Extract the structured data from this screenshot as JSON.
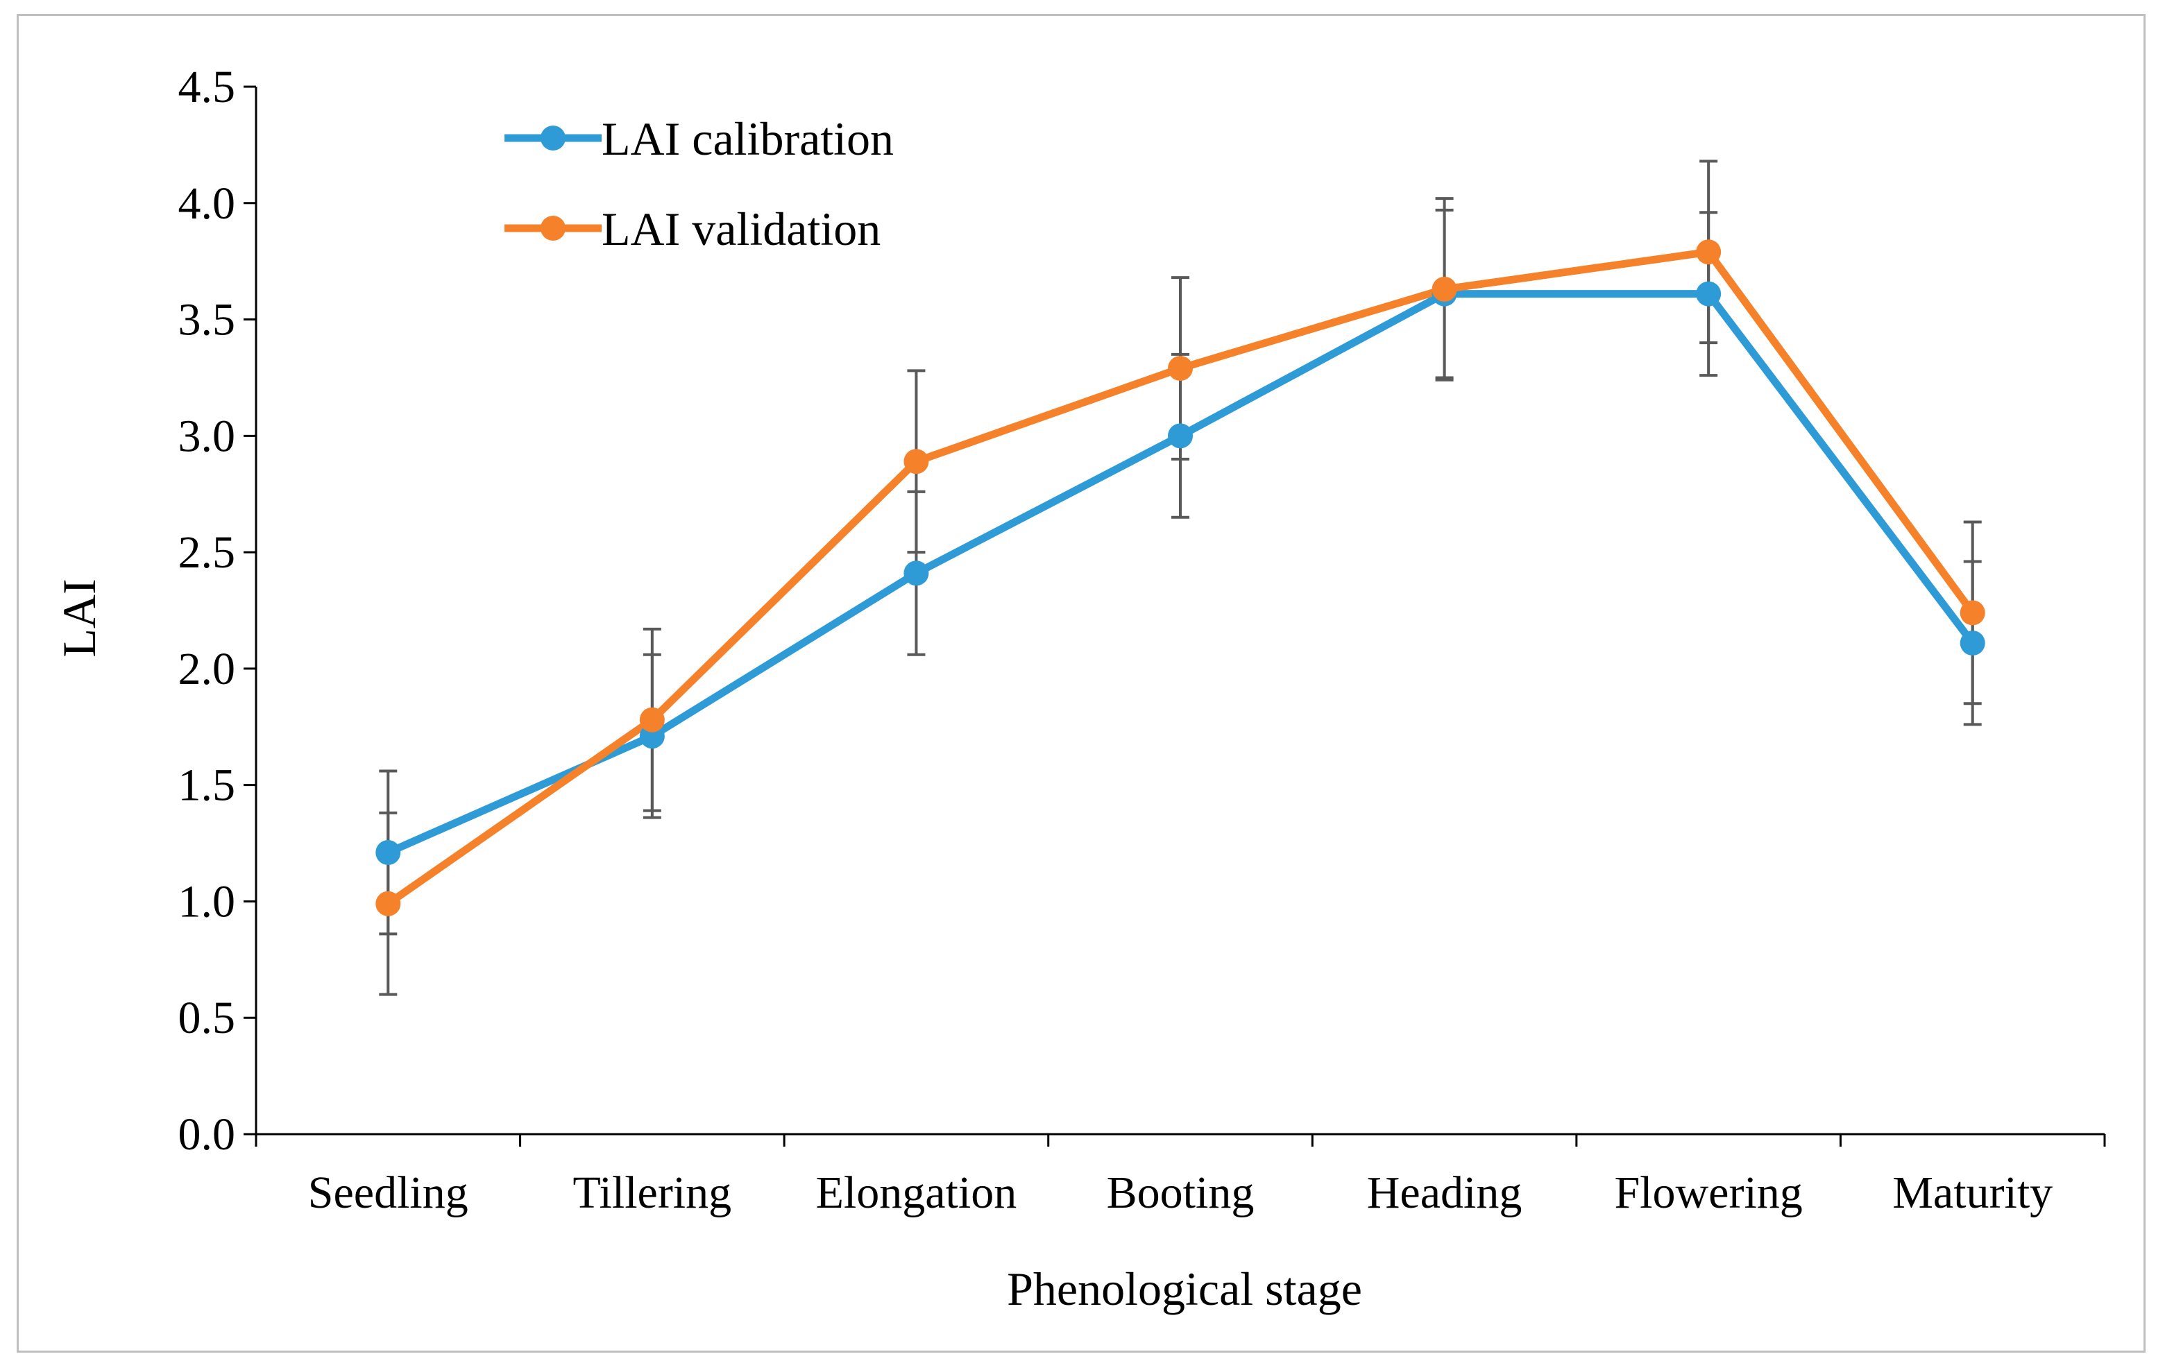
{
  "chart_data": {
    "type": "line",
    "title": "",
    "xlabel": "Phenological stage",
    "ylabel": "LAI",
    "categories": [
      "Seedling",
      "Tillering",
      "Elongation",
      "Booting",
      "Heading",
      "Flowering",
      "Maturity"
    ],
    "ylim": [
      0,
      4.5
    ],
    "yticks": [
      "0.0",
      "0.5",
      "1.0",
      "1.5",
      "2.0",
      "2.5",
      "3.0",
      "3.5",
      "4.0",
      "4.5"
    ],
    "grid": false,
    "legend_position": "top-left",
    "series": [
      {
        "name": "LAI calibration",
        "color": "#2e9bd6",
        "values": [
          1.21,
          1.71,
          2.41,
          3.0,
          3.61,
          3.61,
          2.11
        ],
        "error": [
          0.35,
          0.35,
          0.35,
          0.35,
          0.36,
          0.35,
          0.35
        ]
      },
      {
        "name": "LAI validation",
        "color": "#f5822a",
        "values": [
          0.99,
          1.78,
          2.89,
          3.29,
          3.63,
          3.79,
          2.24
        ],
        "error": [
          0.39,
          0.39,
          0.39,
          0.39,
          0.39,
          0.39,
          0.39
        ]
      }
    ]
  }
}
